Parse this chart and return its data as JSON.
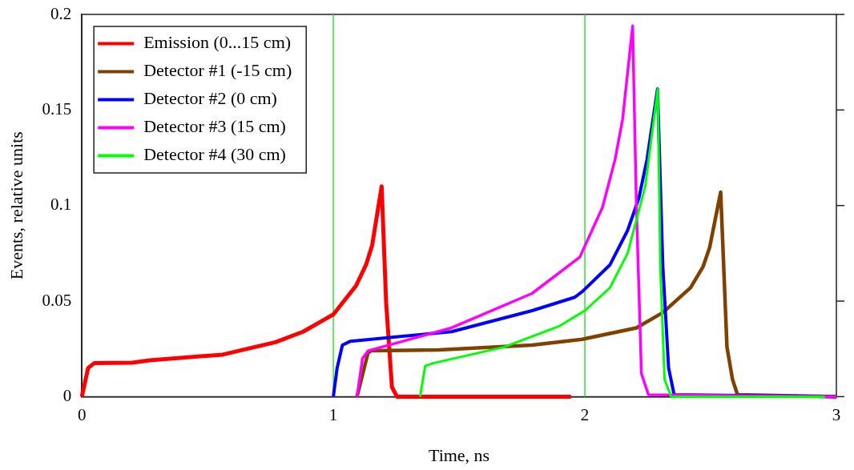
{
  "chart_data": {
    "type": "line",
    "xlabel": "Time, ns",
    "ylabel": "Events, relative units",
    "xlim": [
      0,
      3
    ],
    "ylim": [
      0,
      0.2
    ],
    "xticks": [
      0,
      1,
      2,
      3
    ],
    "yticks": [
      0,
      0.05,
      0.1,
      0.15,
      0.2
    ],
    "grid": false,
    "legend": "top left",
    "marker": "none",
    "line_style": "solid",
    "ref_lines": [
      {
        "axis": "x",
        "value": 1,
        "color": "#33e033"
      },
      {
        "axis": "x",
        "value": 2,
        "color": "#33e033"
      }
    ],
    "series": [
      {
        "name": "Emission (0...15 cm)",
        "color": "#ff0000",
        "x": [
          0,
          0.025,
          0.05,
          0.2,
          0.27,
          0.56,
          0.77,
          0.88,
          0.96,
          1.0,
          1.09,
          1.13,
          1.154,
          1.192,
          1.21,
          1.233,
          1.253,
          1.945
        ],
        "values": [
          0,
          0.015,
          0.0176,
          0.0178,
          0.019,
          0.022,
          0.0285,
          0.034,
          0.04,
          0.043,
          0.058,
          0.069,
          0.079,
          0.11,
          0.049,
          0.005,
          0,
          0
        ]
      },
      {
        "name": "Detector #1 (-15 cm)",
        "color": "#804000",
        "x": [
          1.094,
          1.138,
          1.15,
          1.42,
          1.79,
          1.99,
          2.205,
          2.31,
          2.42,
          2.47,
          2.496,
          2.54,
          2.565,
          2.587,
          2.607,
          3.0
        ],
        "values": [
          0,
          0.023,
          0.024,
          0.0245,
          0.027,
          0.03,
          0.036,
          0.044,
          0.057,
          0.068,
          0.078,
          0.107,
          0.026,
          0.009,
          0.001,
          0
        ]
      },
      {
        "name": "Detector #2 (0 cm)",
        "color": "#0000ff",
        "x": [
          1.0,
          1.015,
          1.036,
          1.068,
          1.47,
          1.79,
          1.96,
          1.99,
          2.1,
          2.17,
          2.215,
          2.247,
          2.289,
          2.31,
          2.333,
          2.355,
          3.0
        ],
        "values": [
          0,
          0.015,
          0.027,
          0.029,
          0.034,
          0.045,
          0.052,
          0.055,
          0.069,
          0.087,
          0.104,
          0.124,
          0.161,
          0.068,
          0.015,
          0.001,
          0
        ]
      },
      {
        "name": "Detector #3 (15 cm)",
        "color": "#ff00ff",
        "x": [
          1.094,
          1.116,
          1.138,
          1.47,
          1.79,
          1.98,
          2.07,
          2.12,
          2.15,
          2.19,
          2.205,
          2.225,
          2.253,
          3.0
        ],
        "values": [
          0,
          0.02,
          0.024,
          0.036,
          0.054,
          0.073,
          0.099,
          0.124,
          0.145,
          0.194,
          0.099,
          0.012,
          0.001,
          0
        ]
      },
      {
        "name": "Detector #4 (30 cm)",
        "color": "#00ff00",
        "x": [
          1.345,
          1.365,
          1.397,
          1.68,
          1.9,
          2.0,
          2.1,
          2.17,
          2.24,
          2.29,
          2.3,
          2.317,
          2.343,
          2.955
        ],
        "values": [
          0,
          0.016,
          0.0175,
          0.026,
          0.037,
          0.045,
          0.057,
          0.075,
          0.11,
          0.161,
          0.068,
          0.009,
          0,
          0
        ]
      }
    ]
  }
}
